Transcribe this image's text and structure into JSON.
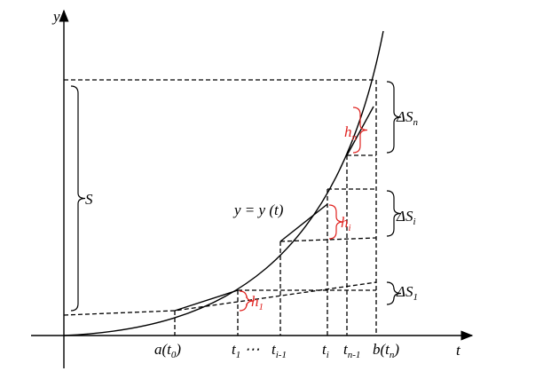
{
  "axes": {
    "x_label": "t",
    "y_label": "y"
  },
  "curve_label": "y = y (t)",
  "total_label": "S",
  "increments": [
    {
      "base": "ΔS",
      "sub": "n"
    },
    {
      "base": "ΔS",
      "sub": "i"
    },
    {
      "base": "ΔS",
      "sub": "1"
    }
  ],
  "heights": [
    {
      "base": "h",
      "sub": "n"
    },
    {
      "base": "h",
      "sub": "i"
    },
    {
      "base": "h",
      "sub": "1"
    }
  ],
  "ticks": [
    {
      "base": "a(t",
      "sub": "0",
      "tail": ")"
    },
    {
      "base": "t",
      "sub": "1",
      "tail": " ⋯"
    },
    {
      "base": "t",
      "sub": "i-1"
    },
    {
      "base": "t",
      "sub": "i"
    },
    {
      "base": "t",
      "sub": "n-1"
    },
    {
      "base": "b(t",
      "sub": "n",
      "tail": ")"
    }
  ]
}
